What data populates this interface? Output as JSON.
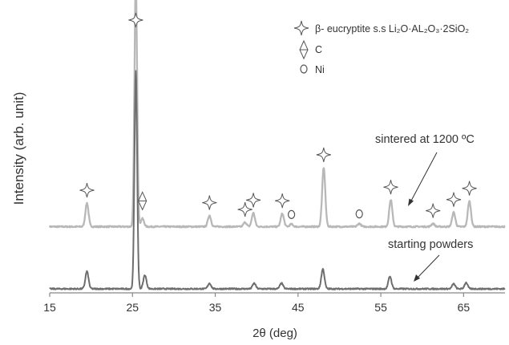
{
  "chart_data": {
    "type": "line",
    "xlabel": "2θ (deg)",
    "ylabel": "Intensity (arb. unit)",
    "xlim": [
      15,
      70
    ],
    "x_ticks": [
      15,
      25,
      35,
      45,
      55,
      65
    ],
    "grid": false,
    "legend_position": "top-right",
    "legend": [
      {
        "marker": "star4",
        "label": "β- eucryptite s.s Li₂O·AL₂O₃·2SiO₂"
      },
      {
        "marker": "diamond-c",
        "label": "C"
      },
      {
        "marker": "circle",
        "label": "Ni"
      }
    ],
    "series": [
      {
        "label_text": "sintered at 1200 ºC",
        "color": "#b8b8b8",
        "baseline": 1.0,
        "peaks": [
          {
            "x": 19.5,
            "y": 0.38,
            "marker": "star4"
          },
          {
            "x": 25.4,
            "y": 4.0,
            "marker": "star4"
          },
          {
            "x": 26.2,
            "y": 0.13,
            "marker": "diamond-c"
          },
          {
            "x": 34.3,
            "y": 0.18,
            "marker": "star4"
          },
          {
            "x": 38.6,
            "y": 0.07,
            "marker": "star4"
          },
          {
            "x": 39.6,
            "y": 0.22,
            "marker": "star4"
          },
          {
            "x": 43.1,
            "y": 0.21,
            "marker": "star4"
          },
          {
            "x": 44.2,
            "y": 0.04,
            "marker": "circle"
          },
          {
            "x": 48.1,
            "y": 0.95,
            "marker": "star4"
          },
          {
            "x": 52.4,
            "y": 0.05,
            "marker": "circle"
          },
          {
            "x": 56.2,
            "y": 0.43,
            "marker": "star4"
          },
          {
            "x": 61.3,
            "y": 0.05,
            "marker": "star4"
          },
          {
            "x": 63.8,
            "y": 0.23,
            "marker": "star4"
          },
          {
            "x": 65.7,
            "y": 0.41,
            "marker": "star4"
          }
        ]
      },
      {
        "label_text": "starting powders",
        "color": "#6e6e6e",
        "baseline": 0.0,
        "peaks": [
          {
            "x": 19.5,
            "y": 0.28
          },
          {
            "x": 25.4,
            "y": 3.5
          },
          {
            "x": 26.5,
            "y": 0.22
          },
          {
            "x": 34.3,
            "y": 0.09
          },
          {
            "x": 39.7,
            "y": 0.09
          },
          {
            "x": 43.0,
            "y": 0.09
          },
          {
            "x": 48.0,
            "y": 0.32
          },
          {
            "x": 56.1,
            "y": 0.2
          },
          {
            "x": 63.8,
            "y": 0.08
          },
          {
            "x": 65.3,
            "y": 0.1
          }
        ]
      }
    ]
  }
}
